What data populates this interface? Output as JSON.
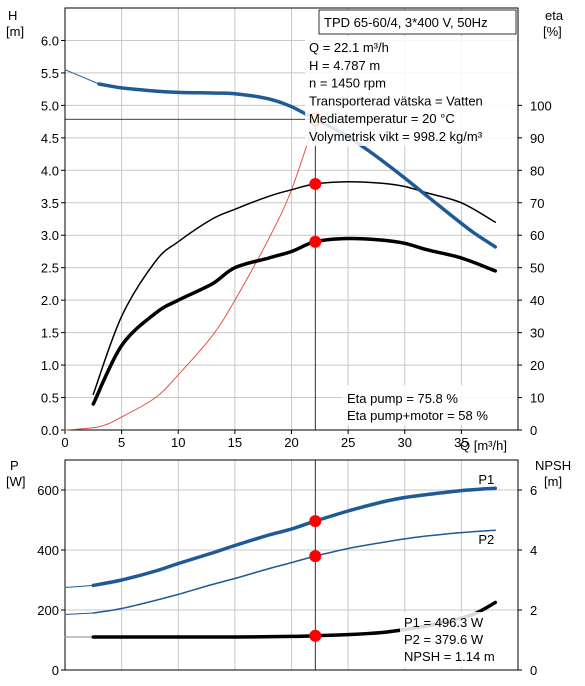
{
  "chart_data": [
    {
      "type": "line",
      "title": "TPD 65-60/4, 3*400 V, 50Hz",
      "xlabel": "Q [m³/h]",
      "ylabel_left": {
        "name": "H",
        "unit": "[m]"
      },
      "ylabel_right": {
        "name": "eta",
        "unit": "[%]"
      },
      "xlim": [
        0,
        40
      ],
      "ylim_left": [
        0,
        6.5
      ],
      "ylim_right": [
        0,
        130
      ],
      "x_ticks": [
        "0",
        "5",
        "10",
        "15",
        "20",
        "25",
        "30",
        "35"
      ],
      "y_ticks_left": [
        "0.0",
        "0.5",
        "1.0",
        "1.5",
        "2.0",
        "2.5",
        "3.0",
        "3.5",
        "4.0",
        "4.5",
        "5.0",
        "5.5",
        "6.0"
      ],
      "y_ticks_right": [
        "0",
        "10",
        "20",
        "30",
        "40",
        "50",
        "60",
        "70",
        "80",
        "90",
        "100"
      ],
      "grid": true,
      "series": [
        {
          "id": "head",
          "axis": "left",
          "color": "#1e5a96",
          "x": [
            0,
            3,
            5,
            8,
            10,
            13,
            15,
            18,
            20,
            22.1,
            24,
            26,
            28,
            30,
            32,
            34,
            36,
            38
          ],
          "y": [
            5.55,
            5.33,
            5.27,
            5.22,
            5.2,
            5.19,
            5.18,
            5.1,
            4.98,
            4.787,
            4.62,
            4.4,
            4.15,
            3.88,
            3.6,
            3.32,
            3.05,
            2.82
          ]
        },
        {
          "id": "eta_motor",
          "axis": "right",
          "x": [
            2.5,
            5,
            8,
            10,
            13,
            15,
            18,
            20,
            22.1,
            25,
            28,
            30,
            32,
            35,
            38
          ],
          "y": [
            11,
            35,
            52,
            58,
            65,
            68,
            72,
            74,
            75.8,
            76.5,
            76,
            75,
            73,
            70,
            64
          ]
        },
        {
          "id": "eta_total",
          "axis": "right",
          "x": [
            2.5,
            5,
            8,
            10,
            13,
            15,
            18,
            20,
            22.1,
            25,
            28,
            30,
            32,
            35,
            38
          ],
          "y": [
            8,
            26,
            36,
            40,
            45,
            50,
            53,
            55,
            58,
            59,
            58.5,
            57.5,
            55.5,
            53,
            49
          ]
        },
        {
          "id": "system_curve",
          "axis": "left",
          "color": "#e0564a",
          "x": [
            0,
            3,
            5,
            8,
            10,
            13,
            15,
            18,
            20,
            22.1
          ],
          "y": [
            0.0,
            0.05,
            0.2,
            0.5,
            0.85,
            1.45,
            2.0,
            2.95,
            3.7,
            4.787
          ]
        }
      ],
      "operating_points": [
        {
          "x": 22.1,
          "y": 4.787,
          "axis": "left"
        },
        {
          "x": 22.1,
          "y": 75.8,
          "axis": "right"
        },
        {
          "x": 22.1,
          "y": 58,
          "axis": "right"
        }
      ],
      "info_lines": [
        "Q = 22.1 m³/h",
        "H = 4.787 m",
        "n = 1450 rpm",
        "Transporterad vätska = Vatten",
        "Mediatemperatur = 20 °C",
        "Volymetrisk vikt = 998.2 kg/m³"
      ],
      "eta_lines": [
        "Eta pump = 75.8 %",
        "Eta pump+motor = 58 %"
      ]
    },
    {
      "type": "line",
      "ylabel_left": {
        "name": "P",
        "unit": "[W]"
      },
      "ylabel_right": {
        "name": "NPSH",
        "unit": "[m]"
      },
      "xlim": [
        0,
        40
      ],
      "ylim_left": [
        0,
        700
      ],
      "ylim_right": [
        0,
        7
      ],
      "y_ticks_left": [
        "0",
        "200",
        "400",
        "600"
      ],
      "y_ticks_right": [
        "0",
        "2",
        "4",
        "6"
      ],
      "grid": true,
      "series": [
        {
          "id": "P1",
          "name": "P1",
          "axis": "left",
          "color": "#1e5a96",
          "x": [
            0,
            2.5,
            5,
            8,
            10,
            13,
            15,
            18,
            20,
            22.1,
            25,
            28,
            30,
            32,
            35,
            38
          ],
          "y": [
            275,
            282,
            300,
            330,
            355,
            390,
            415,
            450,
            470,
            496.3,
            530,
            560,
            575,
            585,
            598,
            606
          ]
        },
        {
          "id": "P2",
          "name": "P2",
          "axis": "left",
          "color": "#1e5a96",
          "x": [
            0,
            2.5,
            5,
            8,
            10,
            13,
            15,
            18,
            20,
            22.1,
            25,
            28,
            30,
            32,
            35,
            38
          ],
          "y": [
            185,
            190,
            205,
            232,
            252,
            285,
            305,
            338,
            358,
            379.6,
            405,
            425,
            437,
            447,
            458,
            466
          ]
        },
        {
          "id": "NPSH",
          "axis": "right",
          "color": "#000000",
          "x": [
            0,
            2.5,
            5,
            10,
            15,
            20,
            22.1,
            25,
            28,
            30,
            33,
            36,
            38
          ],
          "y": [
            1.1,
            1.1,
            1.1,
            1.1,
            1.1,
            1.12,
            1.14,
            1.18,
            1.25,
            1.35,
            1.55,
            1.85,
            2.25
          ]
        }
      ],
      "operating_points": [
        {
          "x": 22.1,
          "y": 496.3,
          "axis": "left"
        },
        {
          "x": 22.1,
          "y": 379.6,
          "axis": "left"
        },
        {
          "x": 22.1,
          "y": 1.14,
          "axis": "right"
        }
      ],
      "info_lines": [
        "P1 = 496.3 W",
        "P2 = 379.6 W",
        "NPSH = 1.14 m"
      ]
    }
  ],
  "colors": {
    "grid": "#c8c8c8",
    "point": "#ff0000",
    "point_highlight": "#ffe600",
    "blue": "#1e5a96",
    "system": "#e0564a"
  }
}
